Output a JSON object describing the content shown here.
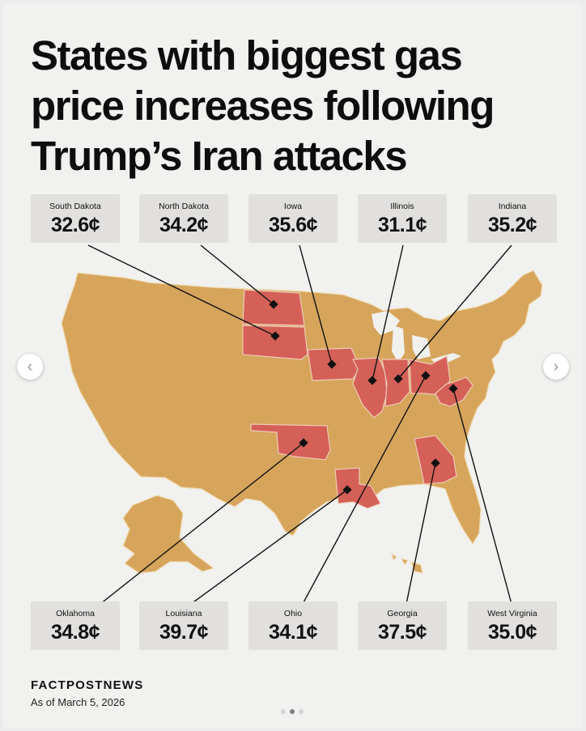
{
  "title": "States with biggest gas price increases following Trump’s Iran attacks",
  "brand": "FACTPOSTNEWS",
  "date_note": "As of March 5, 2026",
  "colors": {
    "background": "#f1f1ef",
    "state_base": "#d6a55b",
    "state_highlight": "#d46058",
    "card": "#e1e0de"
  },
  "states": [
    {
      "name": "South Dakota",
      "price": "32.6¢"
    },
    {
      "name": "North Dakota",
      "price": "34.2¢"
    },
    {
      "name": "Iowa",
      "price": "35.6¢"
    },
    {
      "name": "Illinois",
      "price": "31.1¢"
    },
    {
      "name": "Indiana",
      "price": "35.2¢"
    },
    {
      "name": "Oklahoma",
      "price": "34.8¢"
    },
    {
      "name": "Louisiana",
      "price": "39.7¢"
    },
    {
      "name": "Ohio",
      "price": "34.1¢"
    },
    {
      "name": "Georgia",
      "price": "37.5¢"
    },
    {
      "name": "West Virginia",
      "price": "35.0¢"
    }
  ],
  "icons": {
    "prev": "chevron-left-icon",
    "next": "chevron-right-icon"
  },
  "nav": {
    "prev_glyph": "‹",
    "next_glyph": "›"
  },
  "pager": {
    "pages": 3,
    "current": 2
  }
}
